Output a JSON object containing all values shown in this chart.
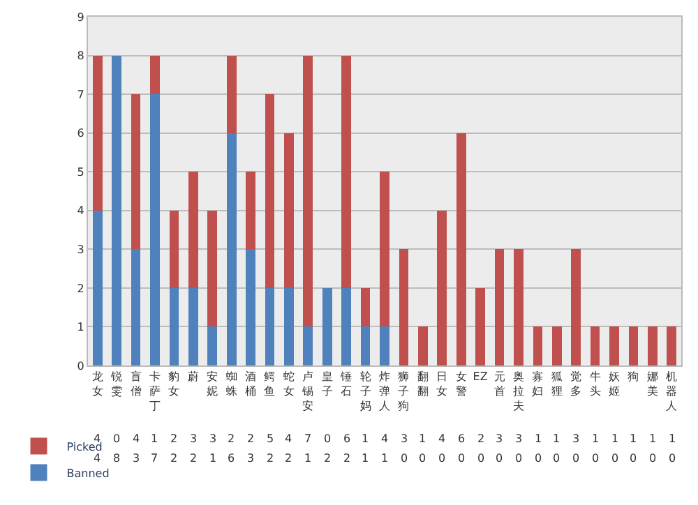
{
  "chart_data": {
    "type": "bar",
    "stacked": true,
    "categories": [
      "龙女",
      "锐雯",
      "盲僧",
      "卡萨丁",
      "豹女",
      "蔚",
      "安妮",
      "蜘蛛",
      "酒桶",
      "鳄鱼",
      "蛇女",
      "卢锡安",
      "皇子",
      "锤石",
      "轮子妈",
      "炸弹人",
      "狮子狗",
      "翻翻",
      "日女",
      "女警",
      "EZ",
      "元首",
      "奥拉夫",
      "寡妇",
      "狐狸",
      "觉多",
      "牛头",
      "妖姬",
      "狗",
      "娜美",
      "机器人"
    ],
    "series": [
      {
        "name": "Banned",
        "color": "#4f81bd",
        "values": [
          4,
          8,
          3,
          7,
          2,
          2,
          1,
          6,
          3,
          2,
          2,
          1,
          2,
          2,
          1,
          1,
          0,
          0,
          0,
          0,
          0,
          0,
          0,
          0,
          0,
          0,
          0,
          0,
          0,
          0,
          0
        ]
      },
      {
        "name": "Picked",
        "color": "#c0504d",
        "values": [
          4,
          0,
          4,
          1,
          2,
          3,
          3,
          2,
          2,
          5,
          4,
          7,
          0,
          6,
          1,
          4,
          3,
          1,
          4,
          6,
          2,
          3,
          3,
          1,
          1,
          3,
          1,
          1,
          1,
          1,
          1
        ]
      }
    ],
    "ylim": [
      0,
      9
    ],
    "yticks": [
      0,
      1,
      2,
      3,
      4,
      5,
      6,
      7,
      8,
      9
    ],
    "grid": "y",
    "legend": "bottom left",
    "data_labels": true
  }
}
